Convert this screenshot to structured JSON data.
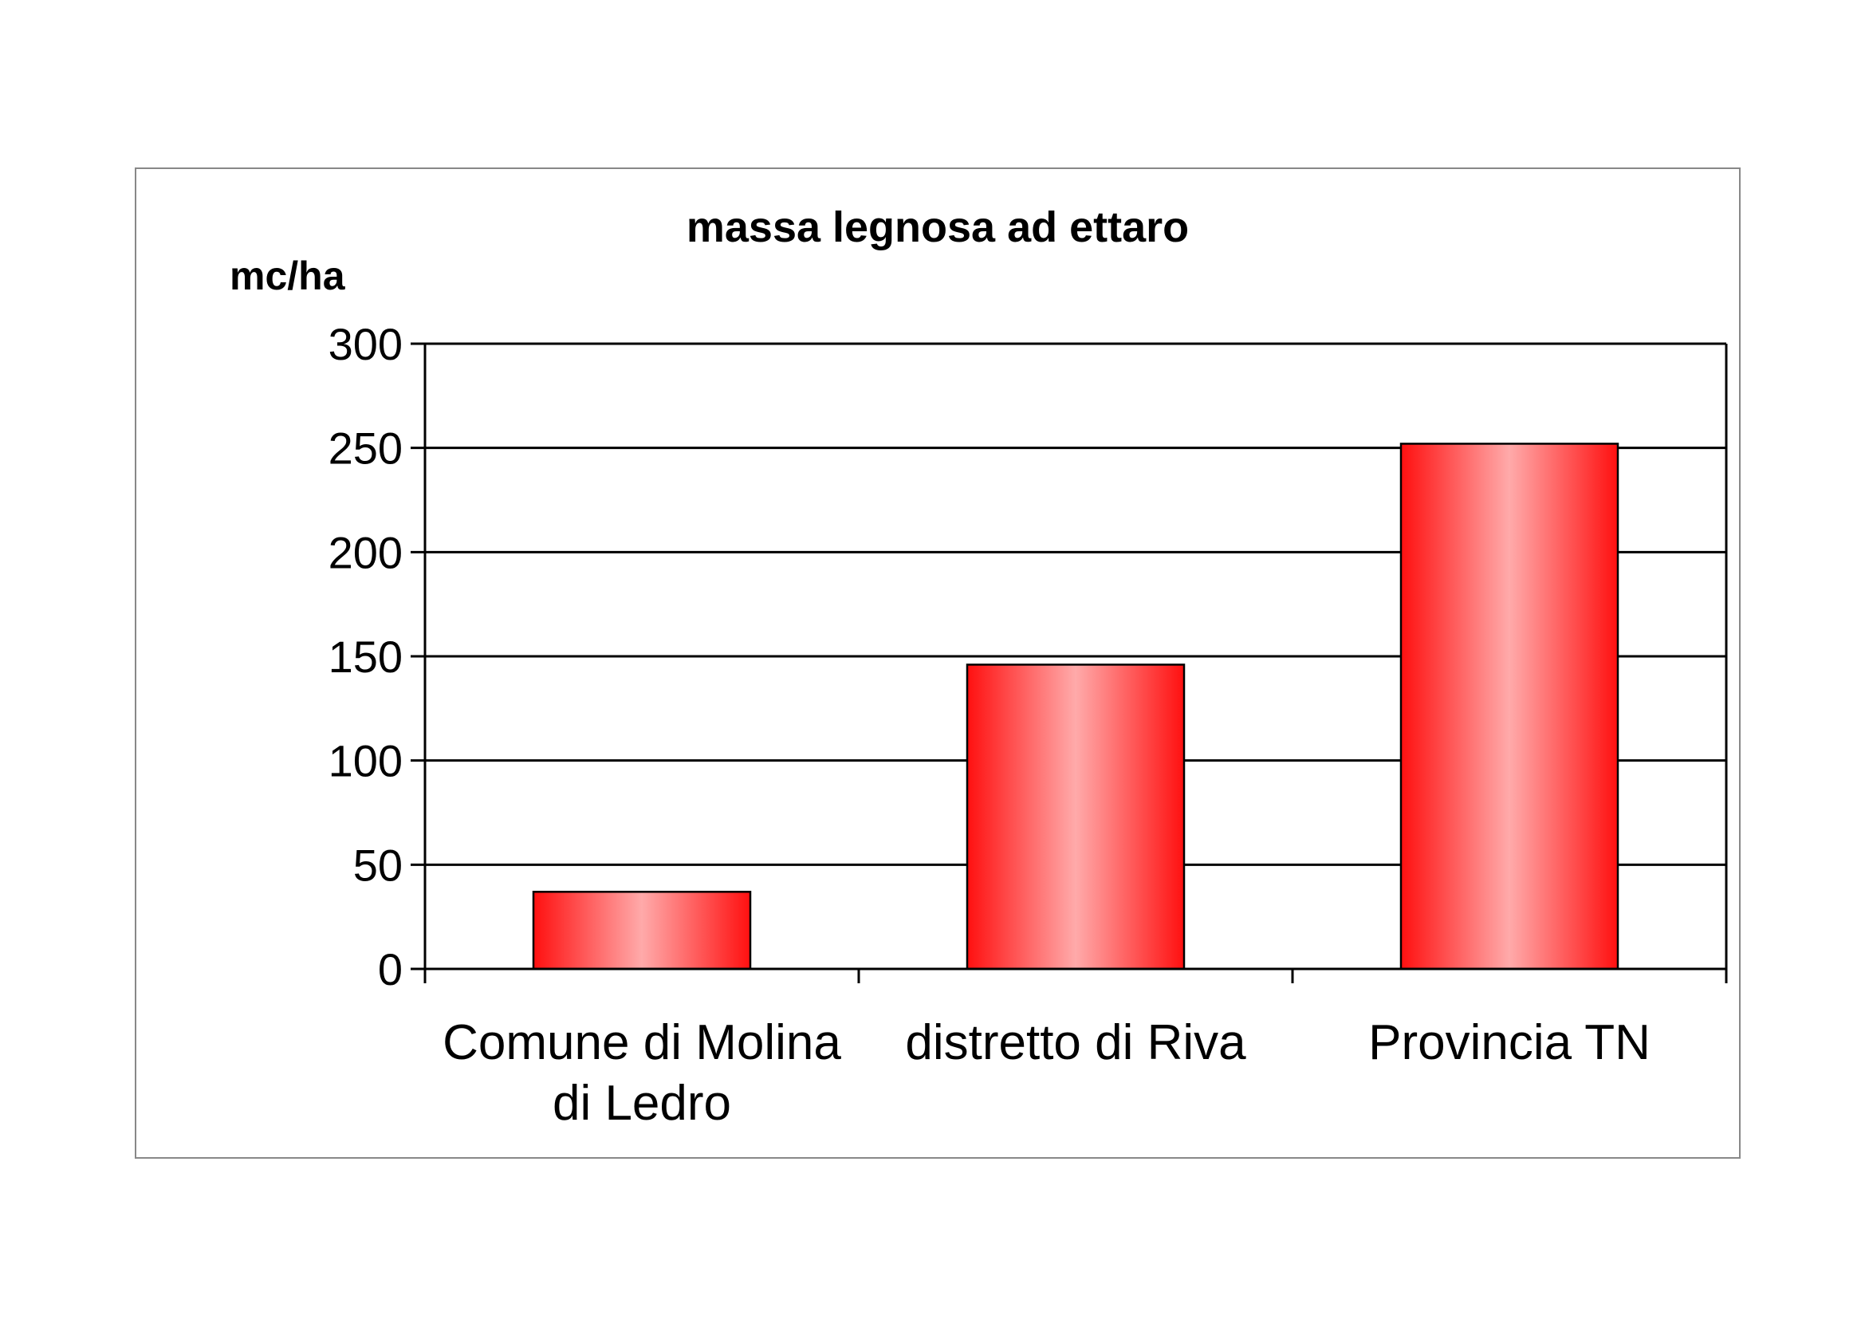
{
  "chart_data": {
    "type": "bar",
    "title": "massa legnosa ad ettaro",
    "ylabel": "mc/ha",
    "xlabel": "",
    "categories": [
      [
        "Comune di Molina",
        "di Ledro"
      ],
      [
        "distretto di Riva"
      ],
      [
        "Provincia TN"
      ]
    ],
    "values": [
      37,
      146,
      252
    ],
    "ylim": [
      0,
      300
    ],
    "yticks": [
      0,
      50,
      100,
      150,
      200,
      250,
      300
    ],
    "grid": "horizontal",
    "legend": "none",
    "bar_color": "#ff0000",
    "bar_highlight": "#ffa8a8"
  }
}
